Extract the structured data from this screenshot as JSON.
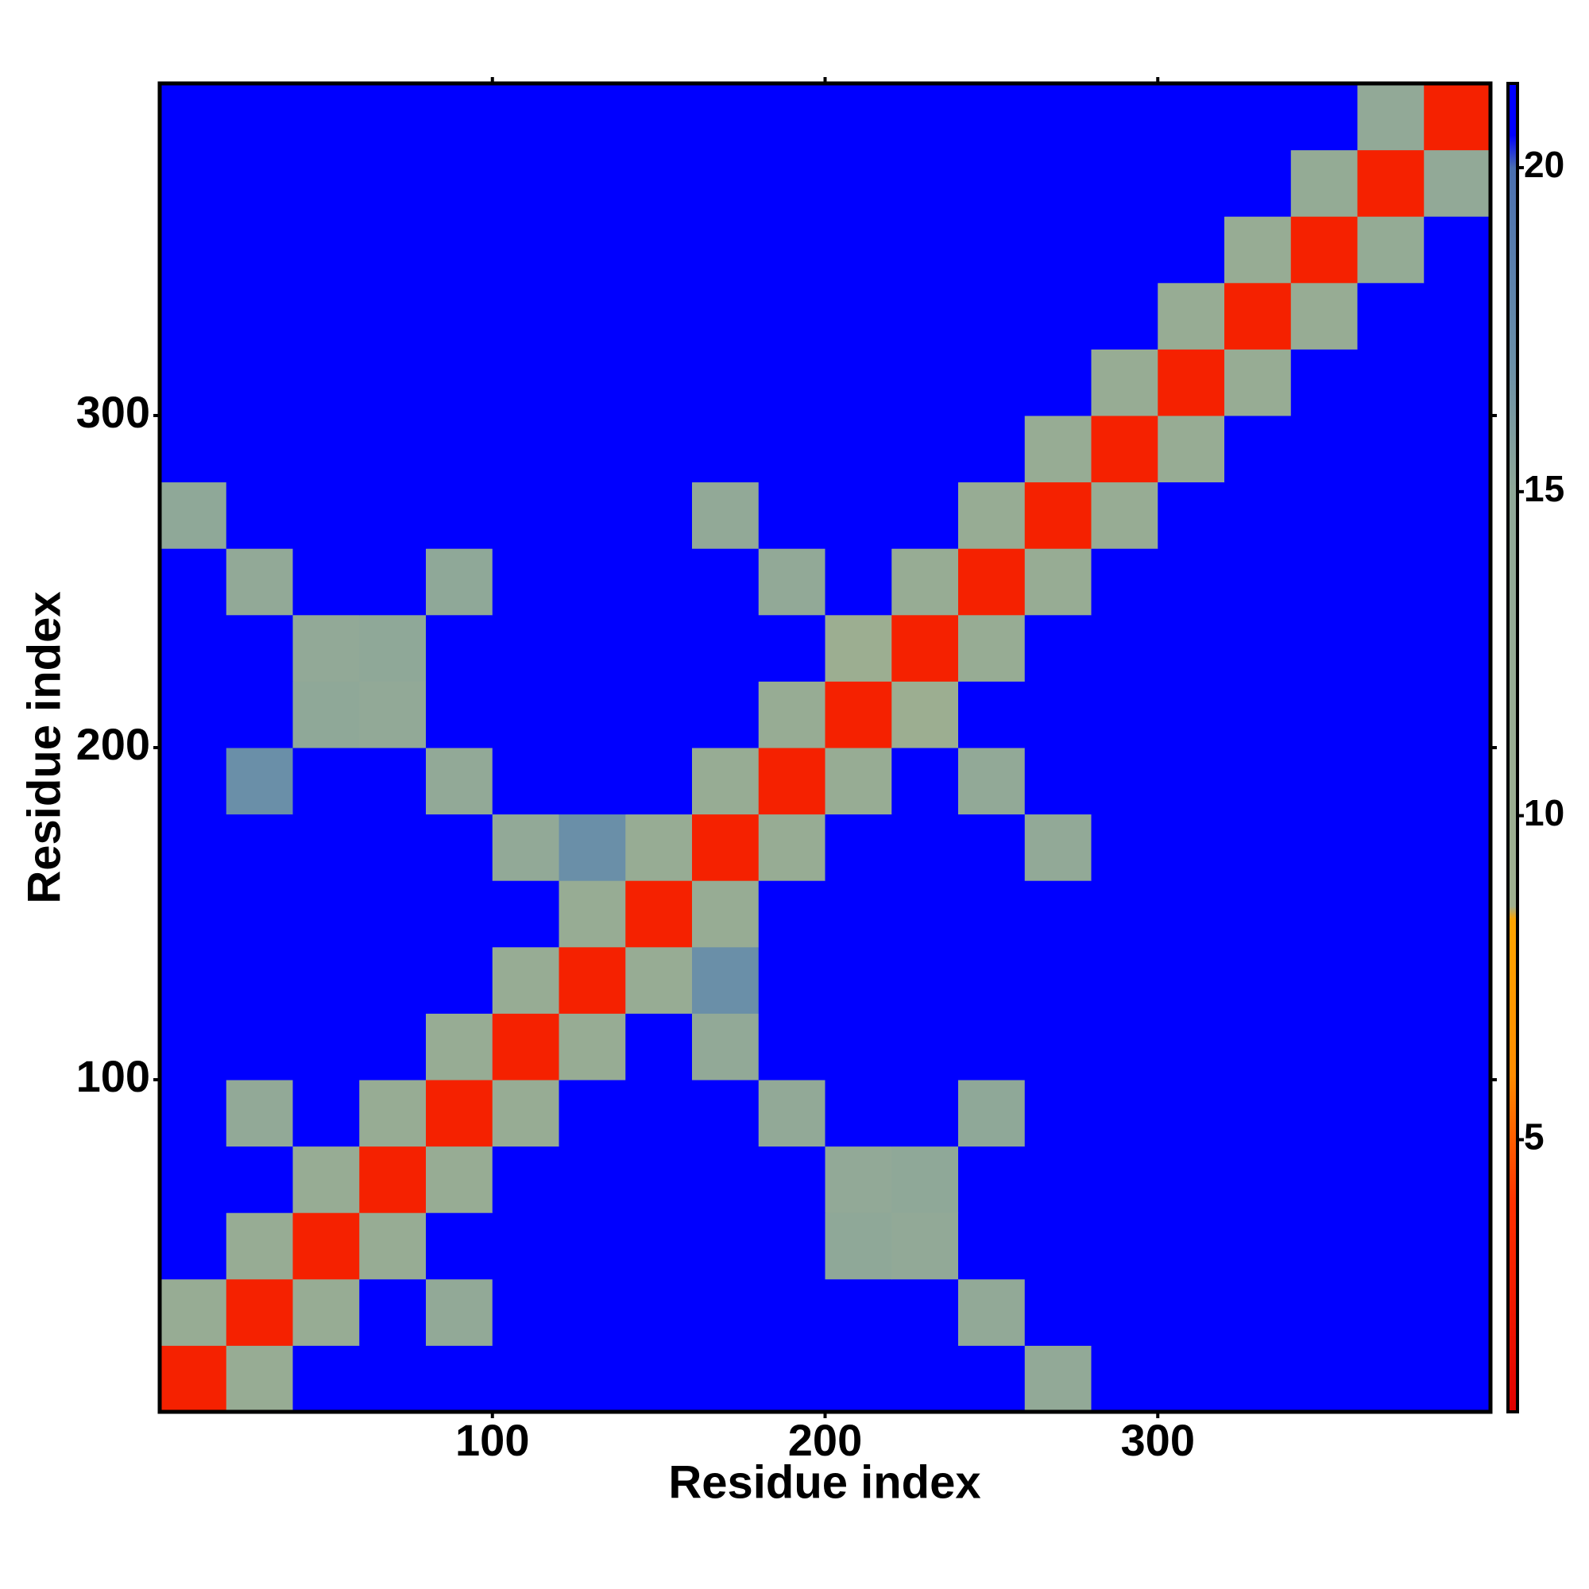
{
  "chart_data": {
    "type": "heatmap",
    "x_label": "Residue index",
    "y_label": "Residue index",
    "xbins": [
      0,
      20,
      40,
      60,
      80,
      100,
      120,
      140,
      160,
      180,
      200,
      220,
      240,
      260,
      280,
      300,
      320,
      340,
      360,
      380,
      400
    ],
    "ybins": [
      0,
      20,
      40,
      60,
      80,
      100,
      120,
      140,
      160,
      180,
      200,
      220,
      240,
      260,
      280,
      300,
      320,
      340,
      360,
      380,
      400
    ],
    "xlim": [
      0,
      400
    ],
    "ylim": [
      0,
      400
    ],
    "xticks": [
      100,
      200,
      300
    ],
    "yticks": [
      100,
      200,
      300
    ],
    "zlim": [
      0.8,
      21.3
    ],
    "zticks": [
      5,
      10,
      15,
      20
    ],
    "colorscale": [
      [
        0.8,
        "#e00000"
      ],
      [
        4,
        "#ff3000"
      ],
      [
        6,
        "#ff8c00"
      ],
      [
        8.4,
        "#ffa500"
      ],
      [
        8.6,
        "#9fb08f"
      ],
      [
        15,
        "#8fa898"
      ],
      [
        17,
        "#6a8fa8"
      ],
      [
        20,
        "#4a6fb0"
      ],
      [
        20.5,
        "#0000ff"
      ]
    ],
    "z": [
      [
        3,
        12,
        21,
        21,
        21,
        21,
        21,
        21,
        21,
        21,
        21,
        21,
        21,
        14,
        21,
        21,
        21,
        21,
        21,
        21
      ],
      [
        12,
        3,
        12,
        21,
        14,
        21,
        21,
        21,
        21,
        21,
        21,
        21,
        14,
        21,
        21,
        21,
        21,
        21,
        21,
        21
      ],
      [
        21,
        12,
        3,
        12,
        21,
        21,
        21,
        21,
        21,
        21,
        15,
        14,
        21,
        21,
        21,
        21,
        21,
        21,
        21,
        21
      ],
      [
        21,
        21,
        12,
        3,
        12,
        21,
        21,
        21,
        21,
        21,
        14,
        15,
        21,
        21,
        21,
        21,
        21,
        21,
        21,
        21
      ],
      [
        21,
        14,
        21,
        12,
        3,
        12,
        21,
        21,
        21,
        14,
        21,
        21,
        15,
        21,
        21,
        21,
        21,
        21,
        21,
        21
      ],
      [
        21,
        21,
        21,
        21,
        12,
        3,
        12,
        21,
        14,
        21,
        21,
        21,
        21,
        21,
        21,
        21,
        21,
        21,
        21,
        21
      ],
      [
        21,
        21,
        21,
        21,
        21,
        12,
        3,
        12,
        17,
        21,
        21,
        21,
        21,
        21,
        21,
        21,
        21,
        21,
        21,
        21
      ],
      [
        21,
        21,
        21,
        21,
        21,
        21,
        12,
        3,
        12,
        21,
        21,
        21,
        21,
        21,
        21,
        21,
        21,
        21,
        21,
        21
      ],
      [
        21,
        21,
        21,
        21,
        21,
        14,
        17,
        12,
        3,
        12,
        21,
        21,
        21,
        14,
        21,
        21,
        21,
        21,
        21,
        21
      ],
      [
        21,
        17,
        21,
        21,
        14,
        21,
        21,
        21,
        12,
        3,
        12,
        21,
        14,
        21,
        21,
        21,
        21,
        21,
        21,
        21
      ],
      [
        21,
        21,
        15,
        14,
        21,
        21,
        21,
        21,
        21,
        12,
        3,
        10,
        21,
        21,
        21,
        21,
        21,
        21,
        21,
        21
      ],
      [
        21,
        21,
        14,
        15,
        21,
        21,
        21,
        21,
        21,
        21,
        10,
        3,
        12,
        21,
        21,
        21,
        21,
        21,
        21,
        21
      ],
      [
        21,
        14,
        21,
        21,
        15,
        21,
        21,
        21,
        21,
        14,
        21,
        12,
        3,
        12,
        21,
        21,
        21,
        21,
        21,
        21
      ],
      [
        15,
        21,
        21,
        21,
        21,
        21,
        21,
        21,
        14,
        21,
        21,
        21,
        12,
        3,
        12,
        21,
        21,
        21,
        21,
        21
      ],
      [
        21,
        21,
        21,
        21,
        21,
        21,
        21,
        21,
        21,
        21,
        21,
        21,
        21,
        12,
        3,
        12,
        21,
        21,
        21,
        21
      ],
      [
        21,
        21,
        21,
        21,
        21,
        21,
        21,
        21,
        21,
        21,
        21,
        21,
        21,
        21,
        12,
        3,
        12,
        21,
        21,
        21
      ],
      [
        21,
        21,
        21,
        21,
        21,
        21,
        21,
        21,
        21,
        21,
        21,
        21,
        21,
        21,
        21,
        12,
        3,
        12,
        21,
        21
      ],
      [
        21,
        21,
        21,
        21,
        21,
        21,
        21,
        21,
        21,
        21,
        21,
        21,
        21,
        21,
        21,
        21,
        12,
        3,
        13,
        21
      ],
      [
        21,
        21,
        21,
        21,
        21,
        21,
        21,
        21,
        21,
        21,
        21,
        21,
        21,
        21,
        21,
        21,
        21,
        13,
        3,
        14
      ],
      [
        21,
        21,
        21,
        21,
        21,
        21,
        21,
        21,
        21,
        21,
        21,
        21,
        21,
        21,
        21,
        21,
        21,
        21,
        14,
        3
      ]
    ]
  }
}
